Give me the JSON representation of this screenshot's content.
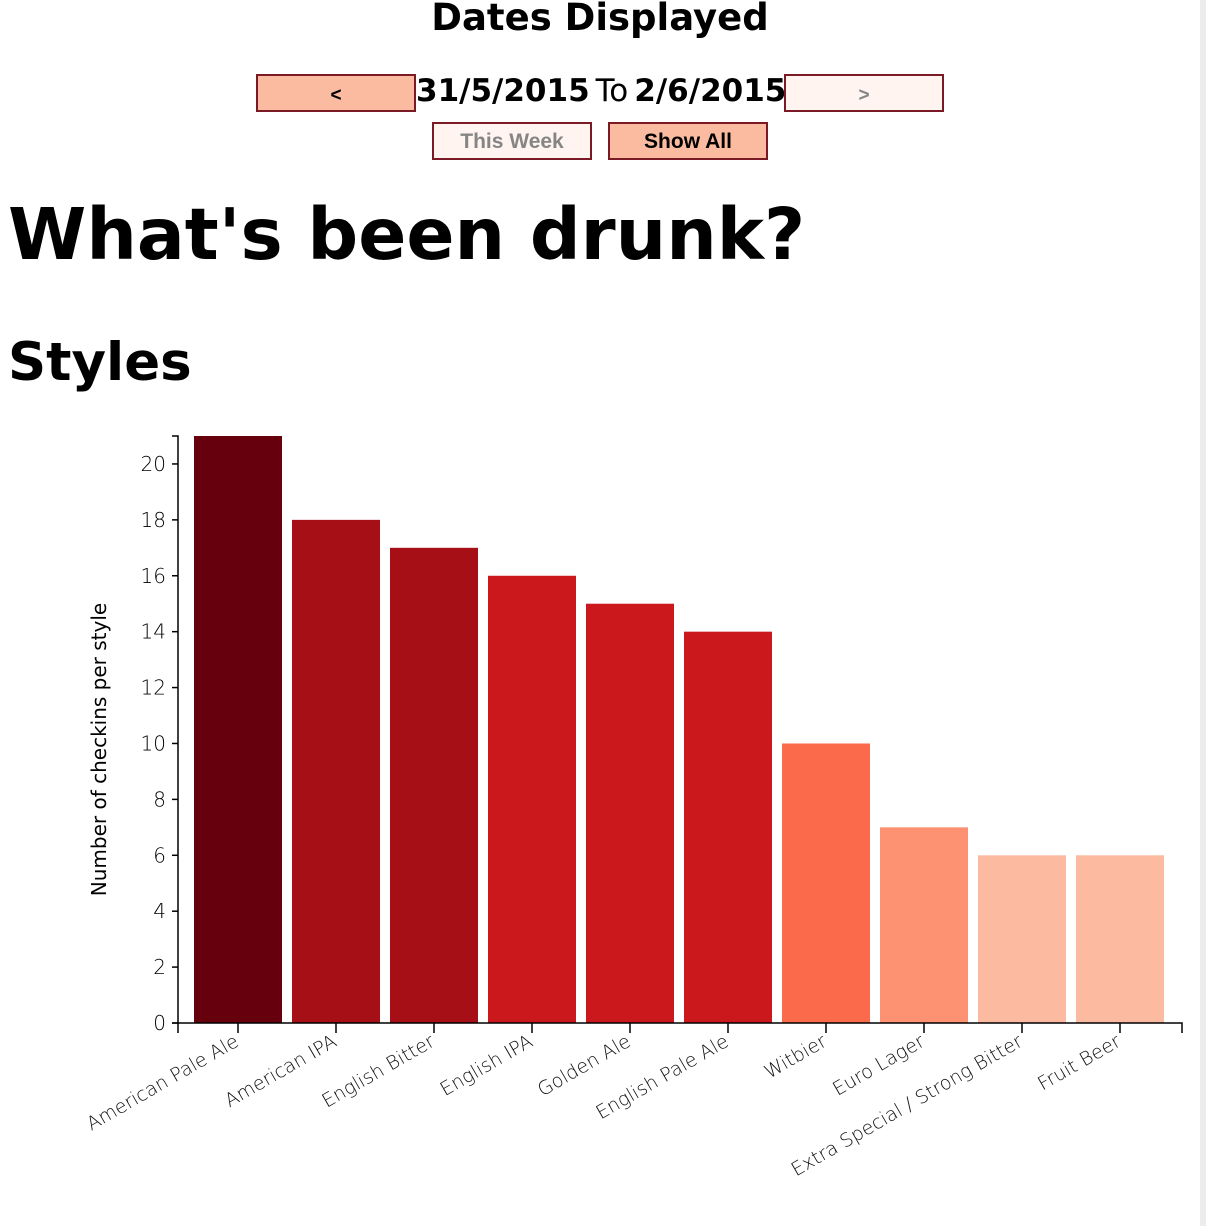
{
  "header": {
    "title": "Dates Displayed",
    "prev_label": "<",
    "next_label": ">",
    "start_date": "31/5/2015",
    "to_label": "To",
    "end_date": "2/6/2015",
    "this_week_label": "This Week",
    "show_all_label": "Show All"
  },
  "main": {
    "title": "What's been drunk?",
    "section_title": "Styles"
  },
  "colors": {
    "button_active": "#fbbba0",
    "button_inactive": "#fff4f0",
    "button_border": "#7a1a24"
  },
  "chart_data": {
    "type": "bar",
    "title": "",
    "xlabel": "",
    "ylabel": "Number of checkins per style",
    "ylim": [
      0,
      21
    ],
    "yticks": [
      0,
      2,
      4,
      6,
      8,
      10,
      12,
      14,
      16,
      18,
      20
    ],
    "grid": false,
    "categories": [
      "American Pale Ale",
      "American IPA",
      "English Bitter",
      "English IPA",
      "Golden Ale",
      "English Pale Ale",
      "Witbier",
      "Euro Lager",
      "Extra Special / Strong Bitter",
      "Fruit Beer"
    ],
    "values": [
      21,
      18,
      17,
      16,
      15,
      14,
      10,
      7,
      6,
      6
    ],
    "bar_colors": [
      "#67000d",
      "#a50f15",
      "#a50f15",
      "#cb181d",
      "#cb181d",
      "#cb181d",
      "#fb6a4a",
      "#fc9272",
      "#fcbba1",
      "#fcbba1"
    ]
  }
}
